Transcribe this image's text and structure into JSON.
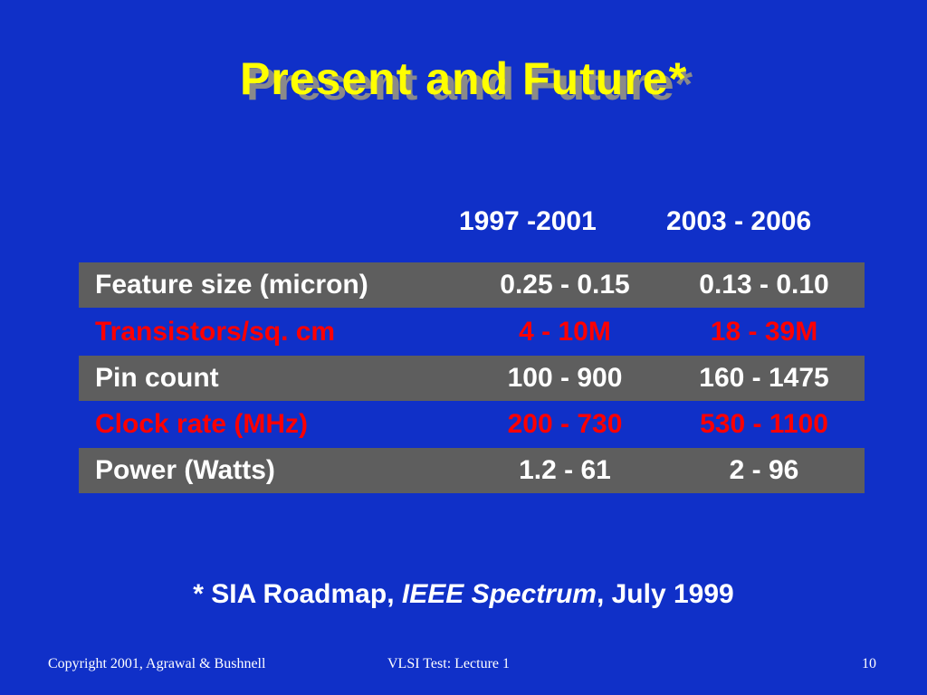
{
  "slide": {
    "title": "Present and Future*",
    "title_color": "#ffff00",
    "background_color": "#1030c8"
  },
  "table": {
    "columns": [
      "1997 -2001",
      "2003 - 2006"
    ],
    "rows": [
      {
        "label": "Feature size (micron)",
        "values": [
          "0.25 - 0.15",
          "0.13 - 0.10"
        ],
        "style": "gray"
      },
      {
        "label": "Transistors/sq. cm",
        "values": [
          "4 - 10M",
          "18 - 39M"
        ],
        "style": "red"
      },
      {
        "label": "Pin count",
        "values": [
          "100 - 900",
          "160 - 1475"
        ],
        "style": "gray"
      },
      {
        "label": "Clock rate (MHz)",
        "values": [
          "200 - 730",
          "530 - 1100"
        ],
        "style": "red"
      },
      {
        "label": "Power (Watts)",
        "values": [
          "1.2 - 61",
          "2 - 96"
        ],
        "style": "gray"
      }
    ],
    "row_fill_color": "#5e5e5e",
    "highlight_text_color": "#ff0000"
  },
  "note": {
    "prefix": "* SIA Roadmap, ",
    "italic": "IEEE Spectrum",
    "suffix": ", July 1999"
  },
  "footer": {
    "left": "Copyright 2001, Agrawal & Bushnell",
    "center": "VLSI Test: Lecture 1",
    "right": "10"
  }
}
